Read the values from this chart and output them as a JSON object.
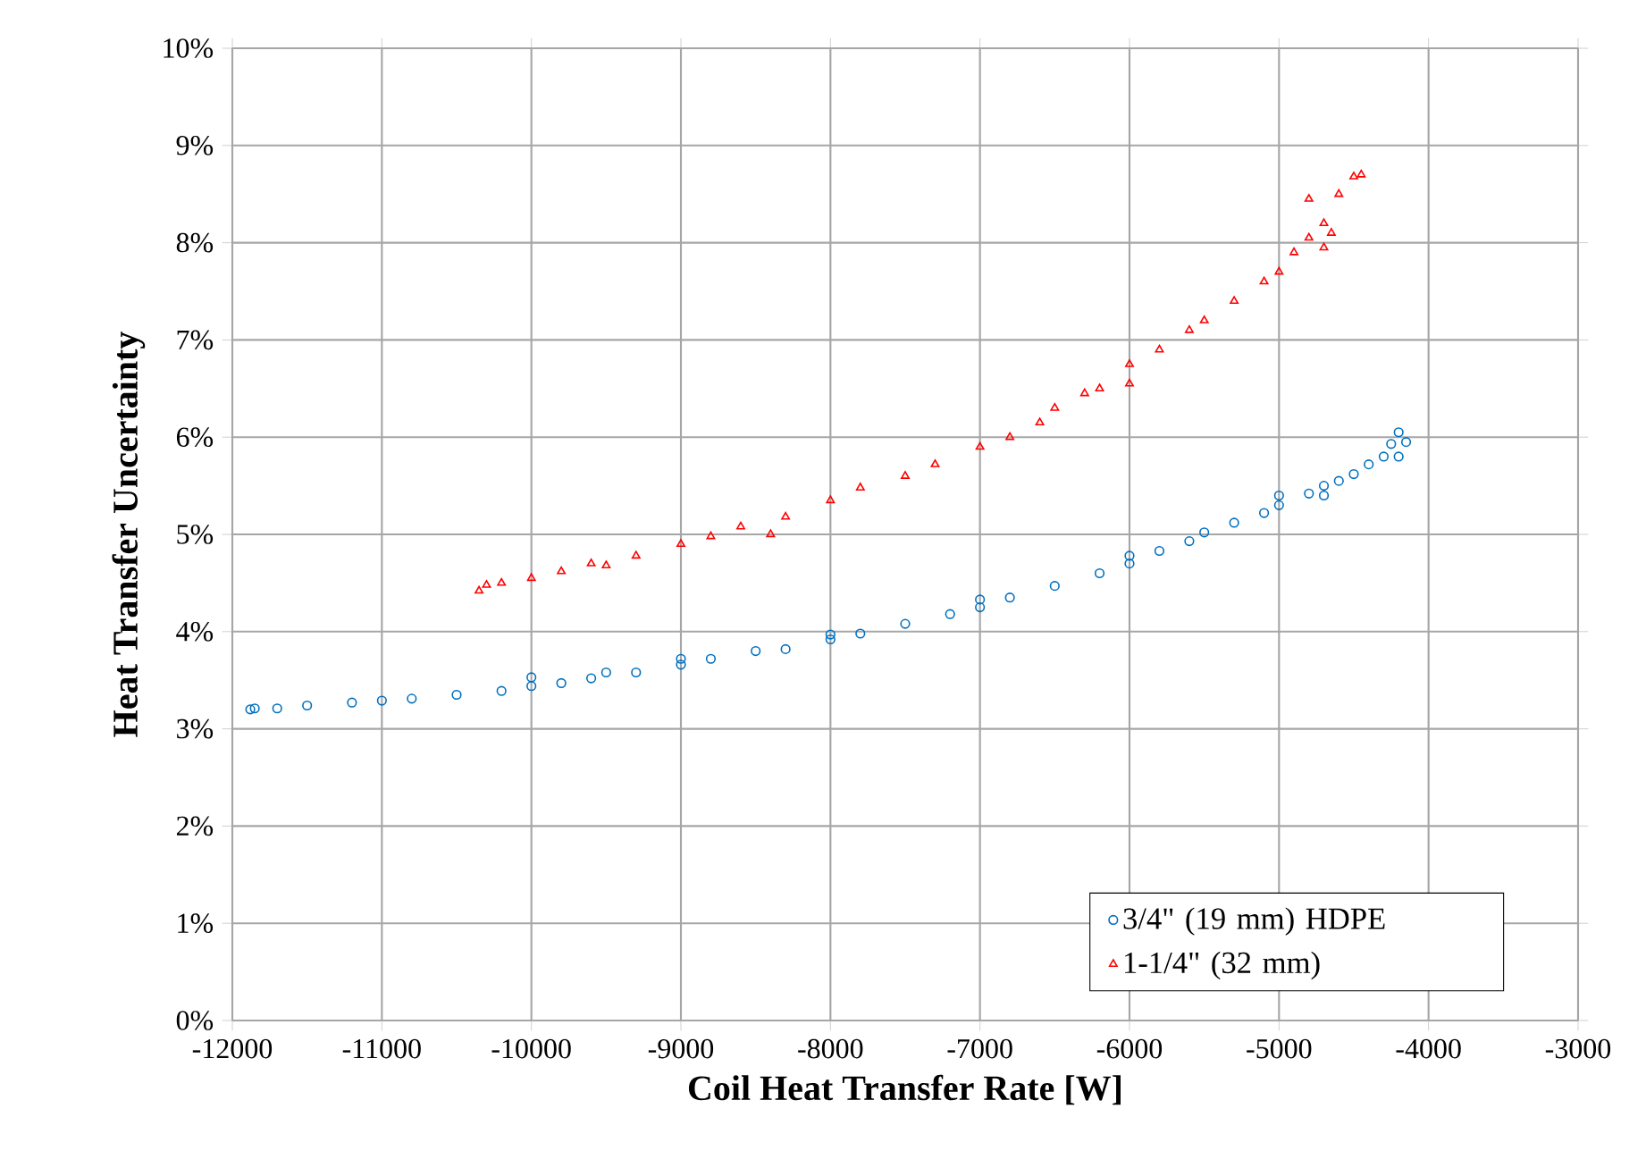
{
  "chart_data": {
    "type": "scatter",
    "xlabel": "Coil Heat Transfer Rate [W]",
    "ylabel": "Heat Transfer Uncertainty",
    "xlim": [
      -12000,
      -3000
    ],
    "xticks": [
      -12000,
      -11000,
      -10000,
      -9000,
      -8000,
      -7000,
      -6000,
      -5000,
      -4000,
      -3000
    ],
    "ylim": [
      0,
      10
    ],
    "yticks": [
      {
        "value": 0,
        "label": "0%"
      },
      {
        "value": 1,
        "label": "1%"
      },
      {
        "value": 2,
        "label": "2%"
      },
      {
        "value": 3,
        "label": "3%"
      },
      {
        "value": 4,
        "label": "4%"
      },
      {
        "value": 5,
        "label": "5%"
      },
      {
        "value": 6,
        "label": "6%"
      },
      {
        "value": 7,
        "label": "7%"
      },
      {
        "value": 8,
        "label": "8%"
      },
      {
        "value": 9,
        "label": "9%"
      },
      {
        "value": 10,
        "label": "10%"
      }
    ],
    "grid": true,
    "legend": "bottom right",
    "series": [
      {
        "name": "3/4\" (19 mm) HDPE",
        "color": "#0070c0",
        "marker": "circle",
        "x": [
          -11880,
          -11850,
          -11700,
          -11500,
          -11200,
          -11000,
          -10800,
          -10500,
          -10200,
          -10000,
          -10000,
          -9800,
          -9600,
          -9500,
          -9300,
          -9000,
          -9000,
          -8800,
          -8500,
          -8300,
          -8000,
          -8000,
          -7800,
          -7500,
          -7200,
          -7000,
          -7000,
          -6800,
          -6500,
          -6200,
          -6000,
          -6000,
          -5800,
          -5600,
          -5500,
          -5300,
          -5100,
          -5000,
          -5000,
          -4800,
          -4700,
          -4600,
          -4500,
          -4400,
          -4300,
          -4250,
          -4200,
          -4150,
          -4200,
          -4700
        ],
        "values": [
          3.2,
          3.21,
          3.21,
          3.24,
          3.27,
          3.29,
          3.31,
          3.35,
          3.39,
          3.44,
          3.53,
          3.47,
          3.52,
          3.58,
          3.58,
          3.66,
          3.72,
          3.72,
          3.8,
          3.82,
          3.92,
          3.97,
          3.98,
          4.08,
          4.18,
          4.25,
          4.33,
          4.35,
          4.47,
          4.6,
          4.7,
          4.78,
          4.83,
          4.93,
          5.02,
          5.12,
          5.22,
          5.3,
          5.4,
          5.42,
          5.5,
          5.55,
          5.62,
          5.72,
          5.8,
          5.93,
          6.05,
          5.95,
          5.8,
          5.4
        ]
      },
      {
        "name": "1-1/4\" (32 mm)",
        "color": "#ff0000",
        "marker": "triangle",
        "x": [
          -10350,
          -10300,
          -10200,
          -10000,
          -9800,
          -9600,
          -9500,
          -9300,
          -9000,
          -8800,
          -8600,
          -8400,
          -8300,
          -8000,
          -7800,
          -7500,
          -7300,
          -7000,
          -6800,
          -6600,
          -6500,
          -6300,
          -6200,
          -6000,
          -6000,
          -5800,
          -5600,
          -5500,
          -5300,
          -5100,
          -5000,
          -4900,
          -4800,
          -4700,
          -4700,
          -4650,
          -4800,
          -4600,
          -4500,
          -4450
        ],
        "values": [
          4.42,
          4.48,
          4.5,
          4.55,
          4.62,
          4.7,
          4.68,
          4.78,
          4.9,
          4.98,
          5.08,
          5.0,
          5.18,
          5.35,
          5.48,
          5.6,
          5.72,
          5.9,
          6.0,
          6.15,
          6.3,
          6.45,
          6.5,
          6.75,
          6.55,
          6.9,
          7.1,
          7.2,
          7.4,
          7.6,
          7.7,
          7.9,
          8.05,
          8.2,
          7.95,
          8.1,
          8.45,
          8.5,
          8.68,
          8.7
        ]
      }
    ]
  }
}
